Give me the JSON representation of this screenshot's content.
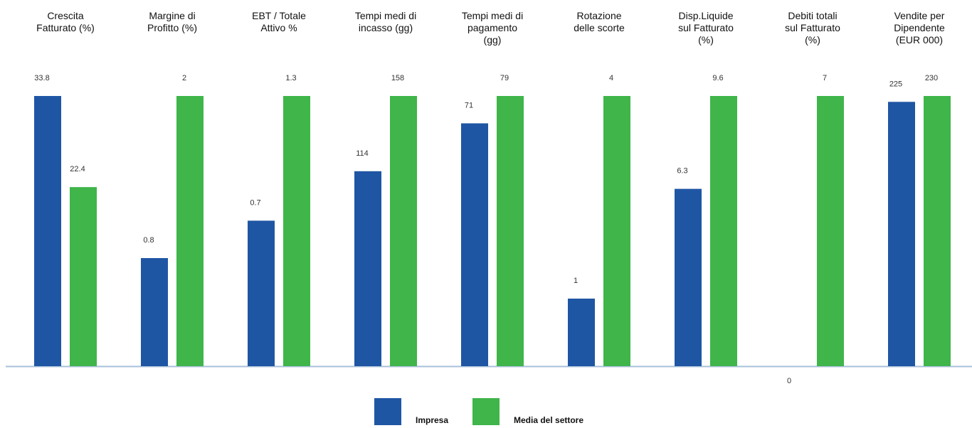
{
  "chart_data": {
    "type": "bar",
    "categories": [
      [
        "Crescita",
        "Fatturato (%)"
      ],
      [
        "Margine di",
        "Profitto (%)"
      ],
      [
        "EBT / Totale",
        "Attivo %"
      ],
      [
        "Tempi medi di",
        "incasso (gg)"
      ],
      [
        "Tempi medi di",
        "pagamento",
        "(gg)"
      ],
      [
        "Rotazione",
        "delle scorte"
      ],
      [
        "Disp.Liquide",
        "sul Fatturato",
        "(%)"
      ],
      [
        "Debiti totali",
        "sul Fatturato",
        "(%)"
      ],
      [
        "Vendite per",
        "Dipendente",
        "(EUR 000)"
      ]
    ],
    "series": [
      {
        "name": "Impresa",
        "color": "#1f56a4",
        "values": [
          33.8,
          0.8,
          0.7,
          114,
          71,
          1,
          6.3,
          0,
          225
        ],
        "labels": [
          "33.8",
          "0.8",
          "0.7",
          "114",
          "71",
          "1",
          "6.3",
          "0",
          "225"
        ]
      },
      {
        "name": "Media del settore",
        "color": "#3fb54a",
        "values": [
          22.4,
          2,
          1.3,
          158,
          79,
          4,
          9.6,
          7,
          230
        ],
        "labels": [
          "22.4",
          "2",
          "1.3",
          "158",
          "79",
          "4",
          "9.6",
          "7",
          "230"
        ]
      }
    ],
    "note": "Each category group uses its own independent scale",
    "legend_position": "bottom-center",
    "baseline_color": "#a8c0d8",
    "grid": false
  }
}
